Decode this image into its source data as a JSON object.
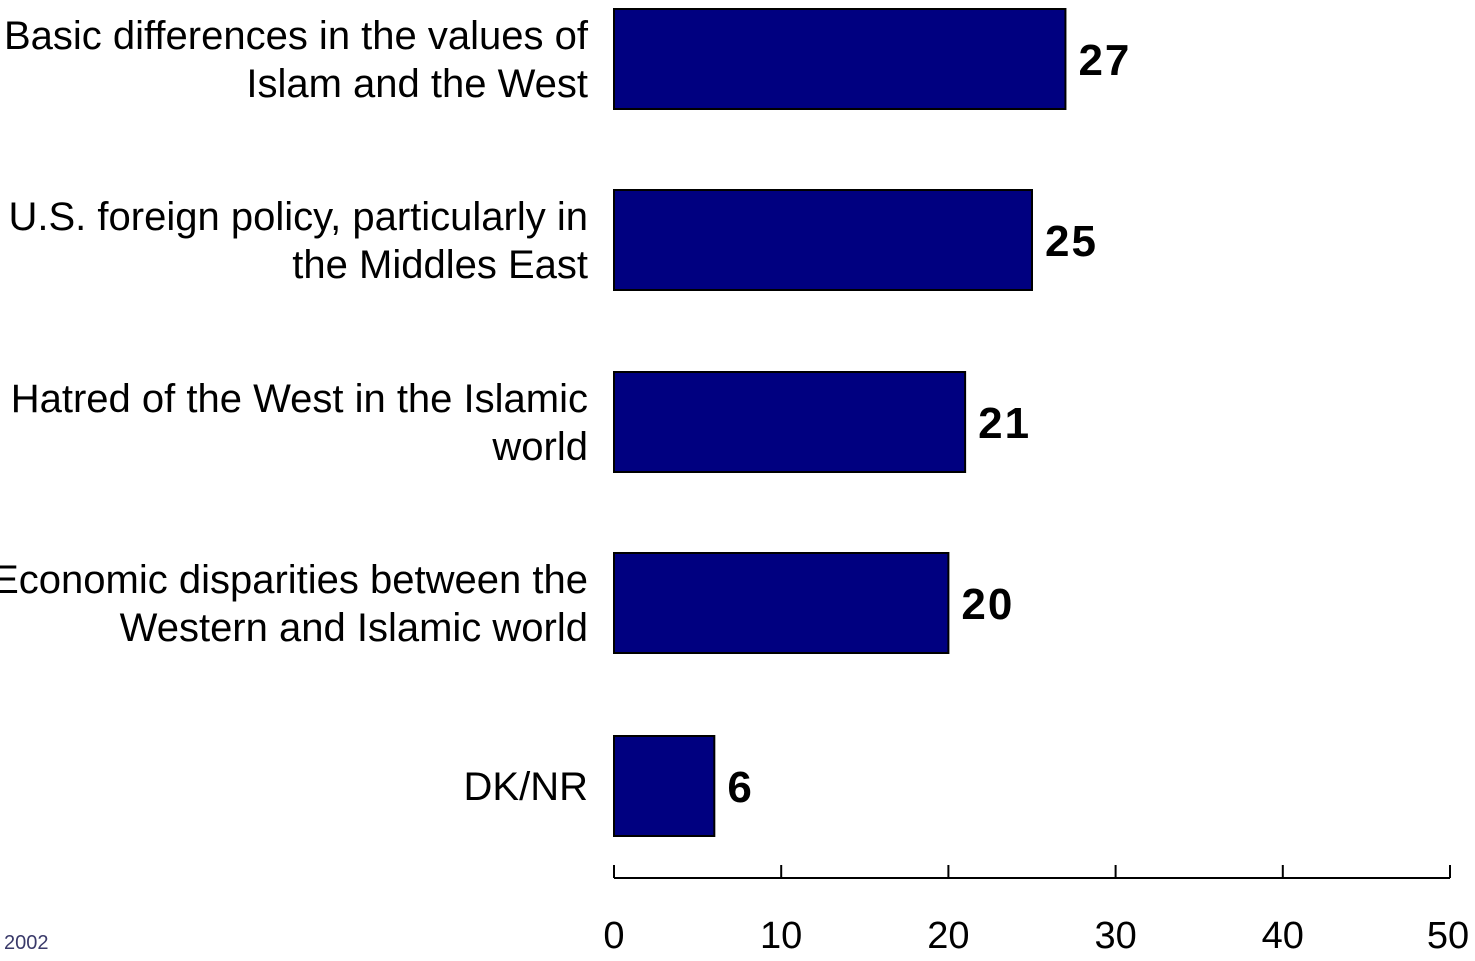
{
  "chart_data": {
    "type": "bar",
    "orientation": "horizontal",
    "categories": [
      [
        "Basic differences in the values of",
        "Islam and the West"
      ],
      [
        "U.S. foreign policy, particularly in",
        "the Middles East"
      ],
      [
        "Hatred of the West in the Islamic",
        "world"
      ],
      [
        "Economic disparities between the",
        "Western and Islamic world"
      ],
      [
        "DK/NR"
      ]
    ],
    "values": [
      27,
      25,
      21,
      20,
      6
    ],
    "value_labels": [
      "27",
      "25",
      "21",
      "20",
      "6"
    ],
    "xlim": [
      0,
      50
    ],
    "xticks": [
      0,
      10,
      20,
      30,
      40,
      50
    ],
    "xtick_labels": [
      "0",
      "10",
      "20",
      "30",
      "40",
      "50"
    ],
    "grid": false,
    "bar_color": "#000080",
    "footnote": "2002"
  }
}
